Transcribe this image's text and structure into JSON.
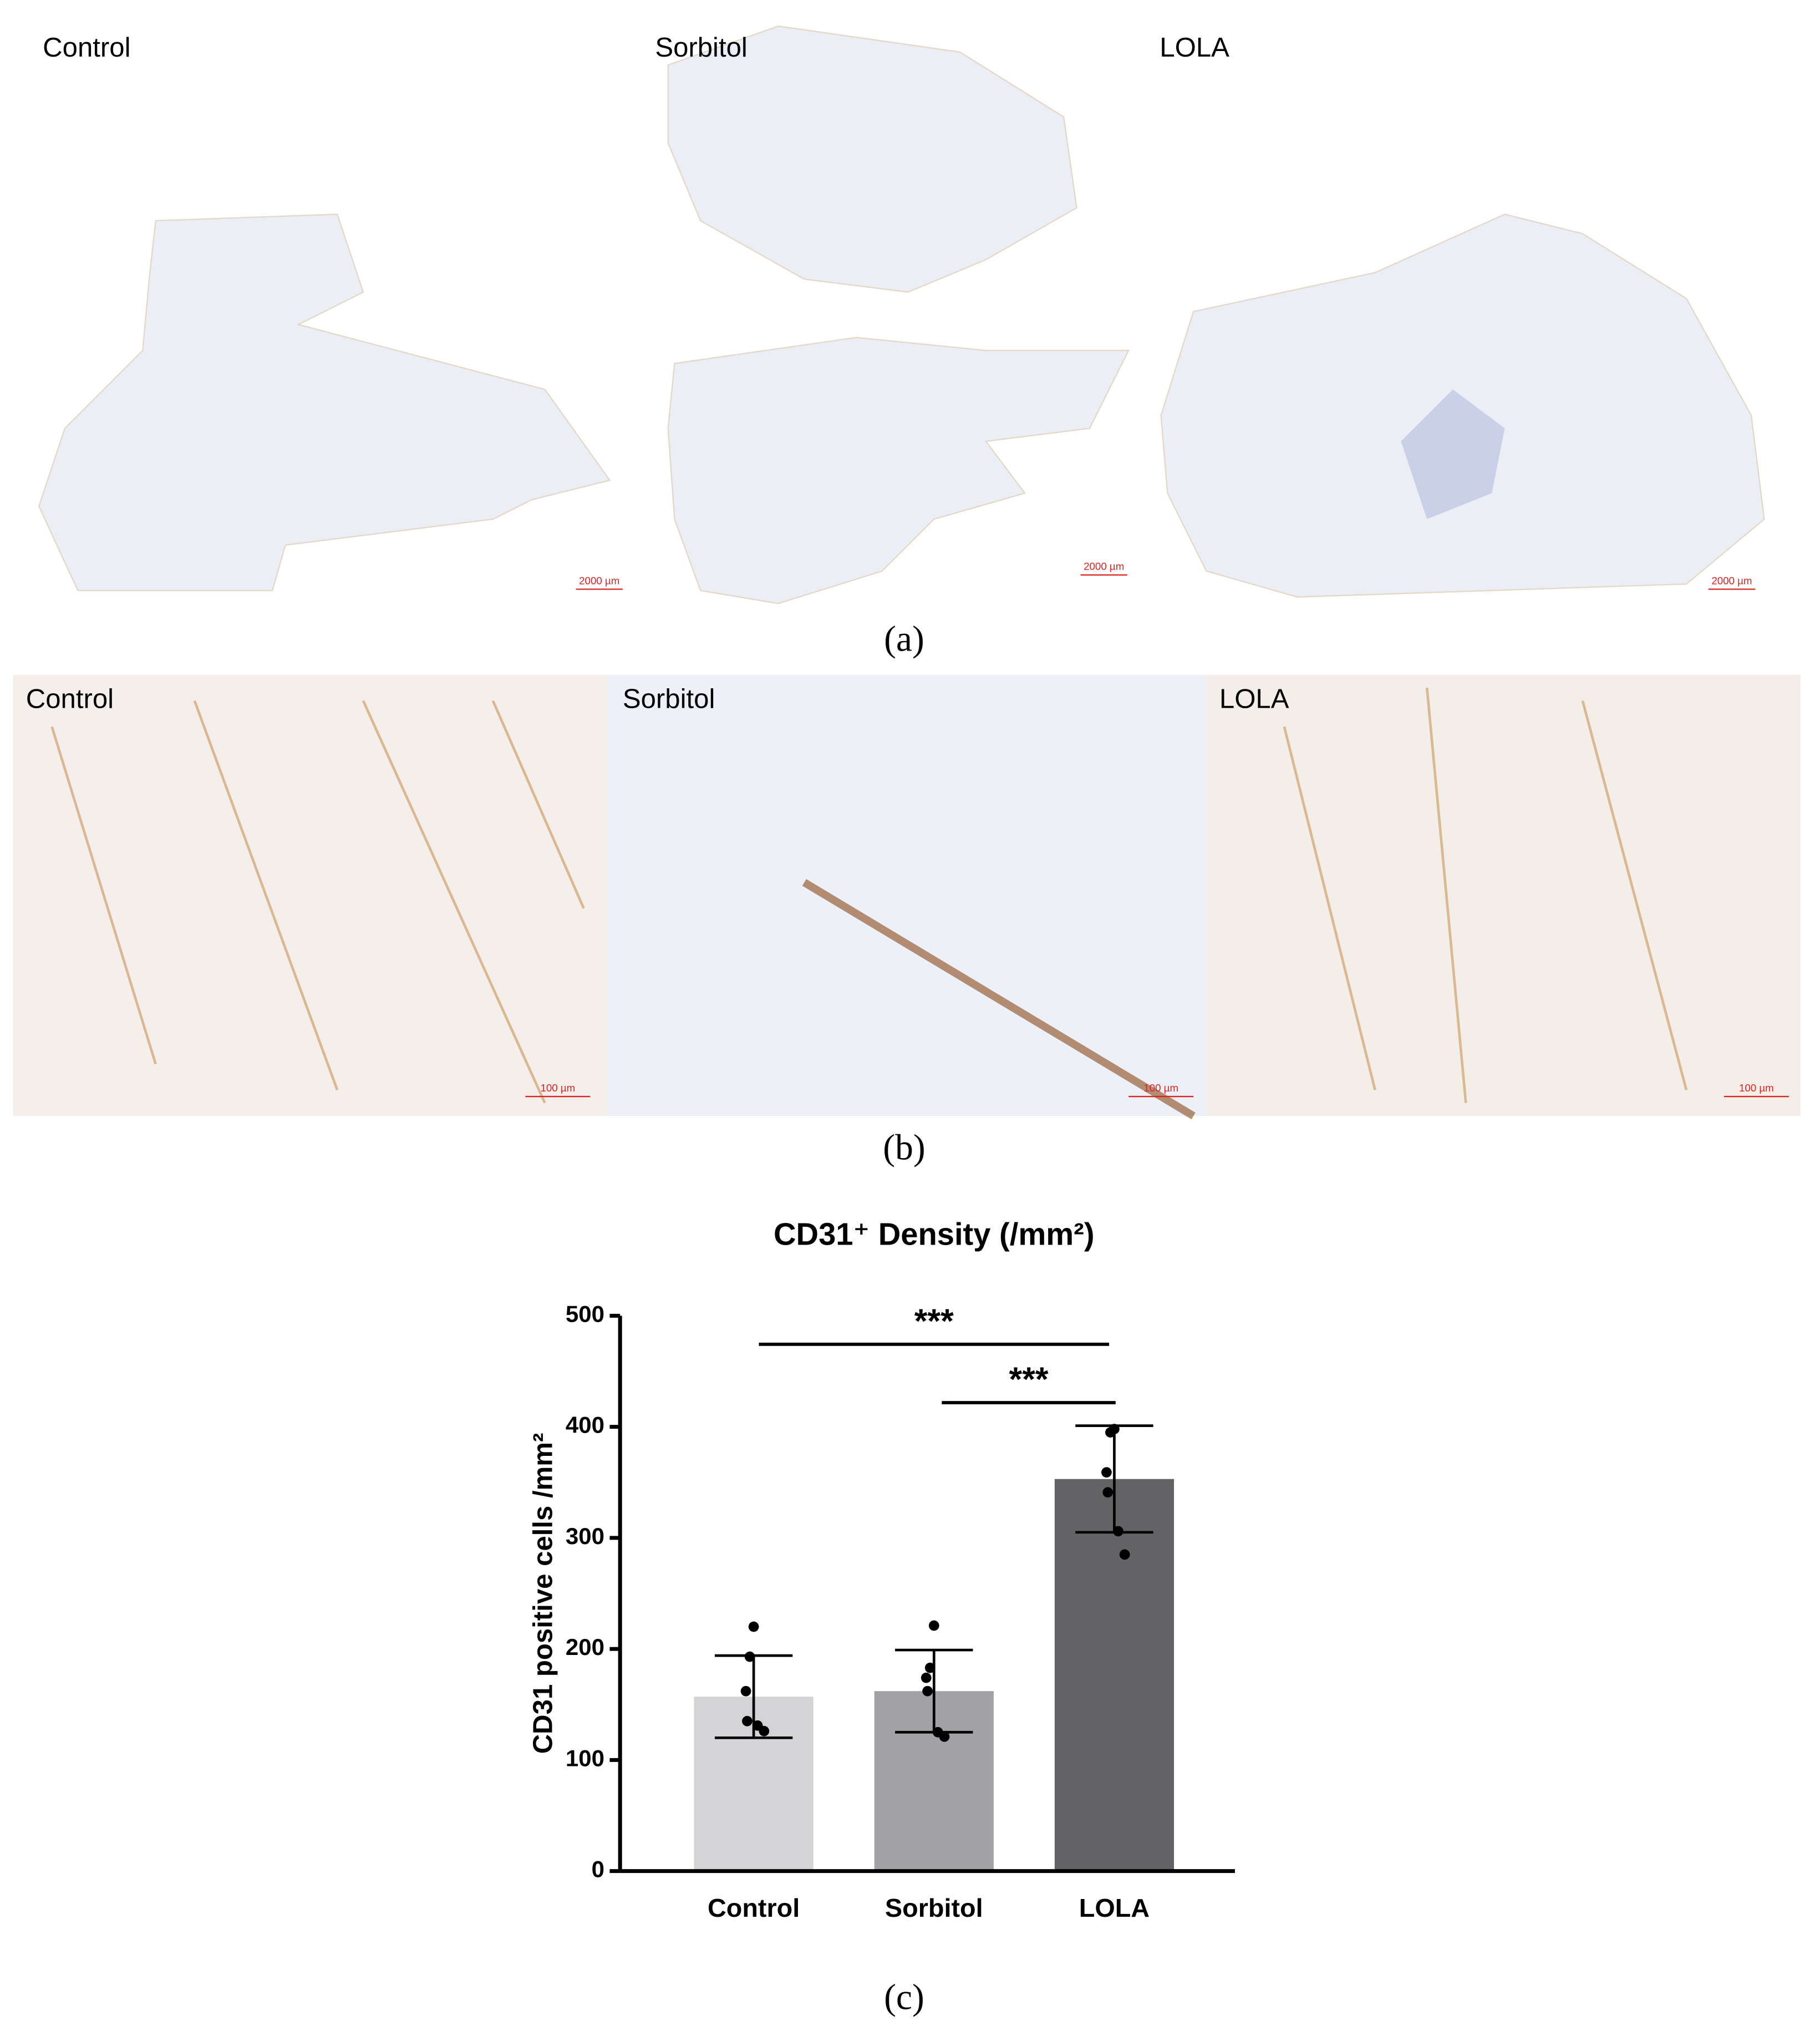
{
  "panel_a": {
    "labels": [
      "Control",
      "Sorbitol",
      "LOLA"
    ],
    "scale_bars": [
      "2000 µm",
      "2000 µm",
      "2000 µm"
    ],
    "caption": "(a)"
  },
  "panel_b": {
    "labels": [
      "Control",
      "Sorbitol",
      "LOLA"
    ],
    "scale_bars": [
      "100 µm",
      "100 µm",
      "100 µm"
    ],
    "caption": "(b)"
  },
  "chart_data": {
    "type": "bar",
    "title": "CD31⁺ Density (/mm²)",
    "y_label": "CD31 positive cells /mm²",
    "categories": [
      "Control",
      "Sorbitol",
      "LOLA"
    ],
    "values": [
      157,
      162,
      353
    ],
    "errors": [
      37,
      37,
      48
    ],
    "colors": [
      "#d4d4d6",
      "#a2a2a6",
      "#636366"
    ],
    "points": [
      [
        220,
        193,
        162,
        135,
        131,
        126
      ],
      [
        221,
        183,
        174,
        162,
        125,
        121
      ],
      [
        398,
        395,
        359,
        341,
        306,
        285
      ]
    ],
    "ylim": [
      0,
      500
    ],
    "yticks": [
      0,
      100,
      200,
      300,
      400,
      500
    ],
    "significance": [
      {
        "between": [
          "Control",
          "LOLA"
        ],
        "label": "***"
      },
      {
        "between": [
          "Sorbitol",
          "LOLA"
        ],
        "label": "***"
      }
    ],
    "caption": "(c)"
  }
}
